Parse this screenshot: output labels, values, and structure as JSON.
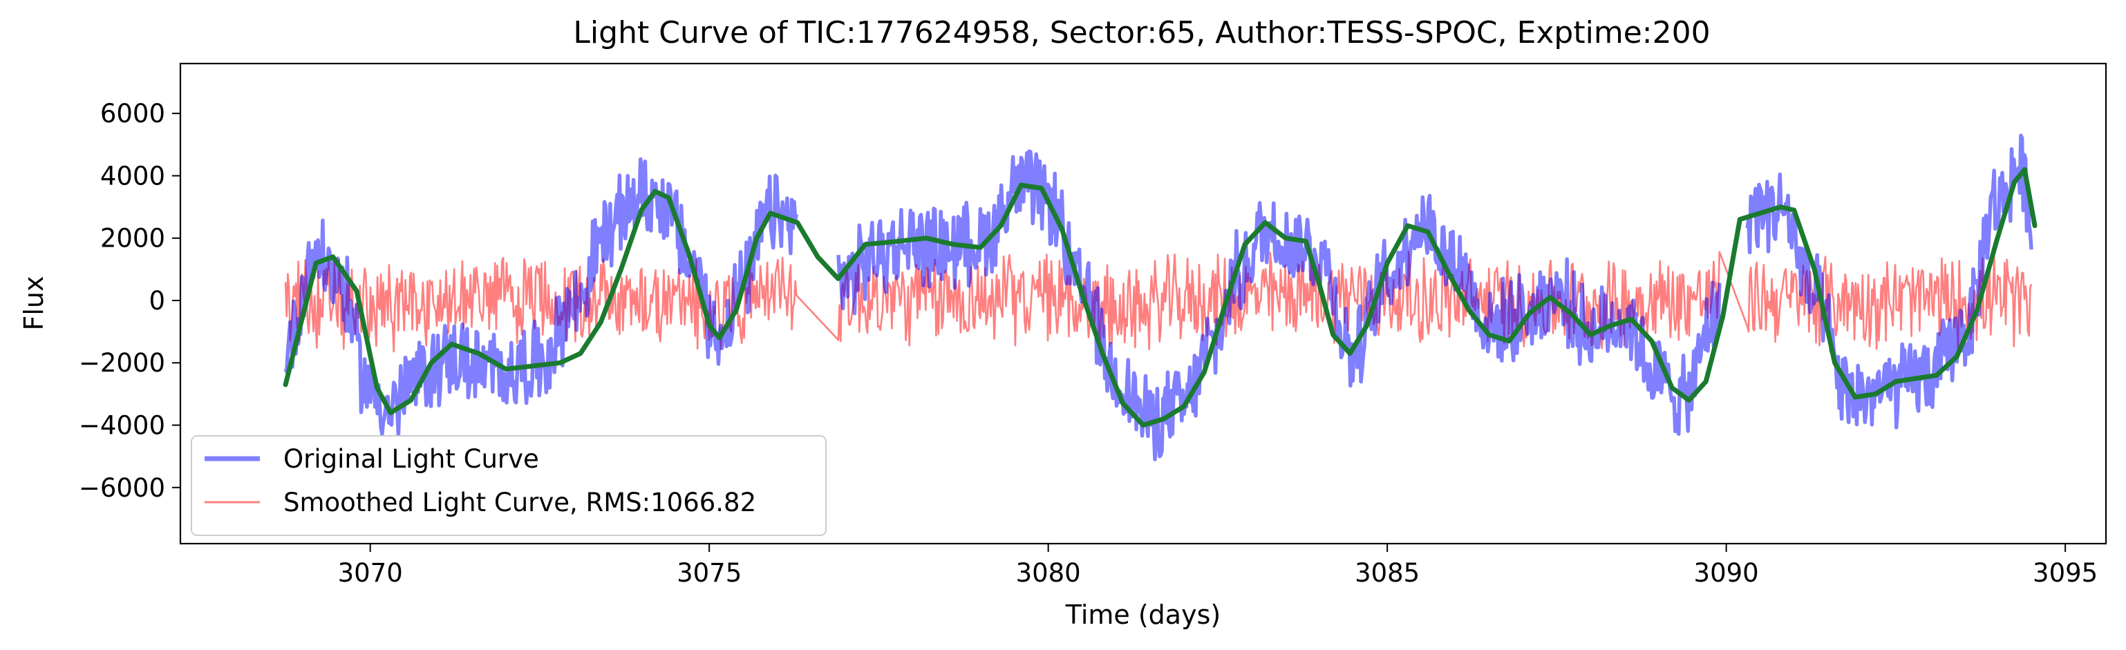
{
  "chart_data": {
    "type": "line",
    "title": "Light Curve of TIC:177624958, Sector:65, Author:TESS-SPOC, Exptime:200",
    "xlabel": "Time (days)",
    "ylabel": "Flux",
    "xlim": [
      3067.2,
      3095.6
    ],
    "ylim": [
      -7800,
      7600
    ],
    "x_ticks": [
      3070,
      3075,
      3080,
      3085,
      3090,
      3095
    ],
    "y_ticks": [
      -6000,
      -4000,
      -2000,
      0,
      2000,
      4000,
      6000
    ],
    "grid": false,
    "legend_position": "lower-left",
    "legend": [
      {
        "label": "Original Light Curve",
        "color": "#0000ff",
        "alpha": 0.5,
        "linewidth": "thick"
      },
      {
        "label": "Smoothed Light Curve, RMS:1066.82",
        "color": "#ff0000",
        "alpha": 0.5,
        "linewidth": "thin"
      }
    ],
    "gaps": [
      [
        3076.3,
        3076.9
      ],
      [
        3089.9,
        3090.3
      ]
    ],
    "series": [
      {
        "name": "Original Light Curve",
        "role": "original",
        "color": "#0000ff",
        "alpha": 0.5,
        "noise_amplitude": 1500,
        "trend_x": [
          3068.75,
          3069.2,
          3069.5,
          3070.0,
          3070.3,
          3070.7,
          3071.2,
          3071.8,
          3072.5,
          3073.0,
          3073.5,
          3074.0,
          3074.3,
          3074.8,
          3075.1,
          3075.5,
          3075.9,
          3076.2,
          3077.0,
          3077.5,
          3078.0,
          3078.5,
          3079.0,
          3079.6,
          3080.0,
          3080.5,
          3081.0,
          3081.5,
          3082.0,
          3082.4,
          3082.8,
          3083.2,
          3083.6,
          3084.0,
          3084.5,
          3085.0,
          3085.5,
          3086.0,
          3086.5,
          3087.0,
          3087.5,
          3088.0,
          3088.5,
          3089.0,
          3089.4,
          3089.8,
          3090.4,
          3090.8,
          3091.3,
          3091.8,
          3092.3,
          3093.0,
          3093.5,
          3094.0,
          3094.3,
          3094.5
        ],
        "trend_y": [
          -1500,
          1500,
          800,
          -2800,
          -3500,
          -2500,
          -1800,
          -2300,
          -2000,
          -200,
          2200,
          3400,
          3200,
          1000,
          -1200,
          400,
          2800,
          2500,
          700,
          1500,
          1900,
          1700,
          1900,
          3700,
          3200,
          300,
          -2500,
          -3800,
          -3400,
          -1500,
          800,
          2200,
          1900,
          1500,
          -1700,
          700,
          2500,
          1200,
          -800,
          -500,
          200,
          -1000,
          -600,
          -2500,
          -3200,
          -600,
          2900,
          3000,
          100,
          -3100,
          -2900,
          -2400,
          -1000,
          3200,
          4200,
          3000
        ]
      },
      {
        "name": "Smoothed Light Curve, RMS:1066.82",
        "role": "residual",
        "color": "#ff0000",
        "alpha": 0.5,
        "noise_amplitude": 1600,
        "trend_x": [
          3068.75,
          3070.0,
          3072.0,
          3074.0,
          3075.0,
          3076.0,
          3078.0,
          3080.0,
          3081.0,
          3082.0,
          3084.0,
          3086.0,
          3088.0,
          3090.0,
          3092.0,
          3094.5
        ],
        "trend_y": [
          0,
          -200,
          100,
          0,
          -200,
          200,
          0,
          100,
          -300,
          0,
          200,
          0,
          -100,
          100,
          0,
          0
        ]
      },
      {
        "name": "",
        "role": "trend",
        "color": "#1a7a2e",
        "alpha": 1.0,
        "x": [
          3068.75,
          3069.2,
          3069.45,
          3069.8,
          3070.1,
          3070.3,
          3070.6,
          3070.9,
          3071.2,
          3071.6,
          3072.0,
          3072.4,
          3072.8,
          3073.1,
          3073.4,
          3073.7,
          3074.0,
          3074.2,
          3074.4,
          3074.7,
          3075.0,
          3075.15,
          3075.4,
          3075.7,
          3075.9,
          3076.3,
          3076.6,
          3076.9,
          3077.3,
          3077.8,
          3078.2,
          3078.6,
          3079.0,
          3079.3,
          3079.6,
          3079.9,
          3080.2,
          3080.5,
          3080.8,
          3081.1,
          3081.4,
          3081.7,
          3082.0,
          3082.3,
          3082.6,
          3082.9,
          3083.2,
          3083.5,
          3083.8,
          3084.0,
          3084.2,
          3084.45,
          3084.7,
          3085.0,
          3085.3,
          3085.6,
          3085.9,
          3086.2,
          3086.5,
          3086.8,
          3087.1,
          3087.4,
          3087.7,
          3088.0,
          3088.3,
          3088.6,
          3088.9,
          3089.2,
          3089.45,
          3089.7,
          3089.95,
          3090.2,
          3090.5,
          3090.8,
          3091.0,
          3091.3,
          3091.6,
          3091.9,
          3092.2,
          3092.5,
          3092.8,
          3093.1,
          3093.4,
          3093.7,
          3094.0,
          3094.25,
          3094.4,
          3094.55
        ],
        "y": [
          -2700,
          1200,
          1400,
          300,
          -2800,
          -3600,
          -3200,
          -2000,
          -1400,
          -1700,
          -2200,
          -2100,
          -2000,
          -1700,
          -700,
          1000,
          2900,
          3500,
          3300,
          1500,
          -800,
          -1200,
          -300,
          2000,
          2800,
          2500,
          1400,
          700,
          1800,
          1900,
          2000,
          1800,
          1700,
          2400,
          3700,
          3600,
          2300,
          200,
          -1700,
          -3300,
          -4000,
          -3800,
          -3400,
          -2300,
          -200,
          1800,
          2500,
          2000,
          1900,
          500,
          -1100,
          -1700,
          -800,
          1200,
          2400,
          2200,
          900,
          -300,
          -1100,
          -1300,
          -400,
          100,
          -400,
          -1100,
          -800,
          -600,
          -1300,
          -2800,
          -3200,
          -2600,
          -500,
          2600,
          2800,
          3000,
          2900,
          1000,
          -2000,
          -3100,
          -3000,
          -2600,
          -2500,
          -2400,
          -1800,
          -300,
          2000,
          3800,
          4200,
          2400
        ]
      }
    ]
  }
}
